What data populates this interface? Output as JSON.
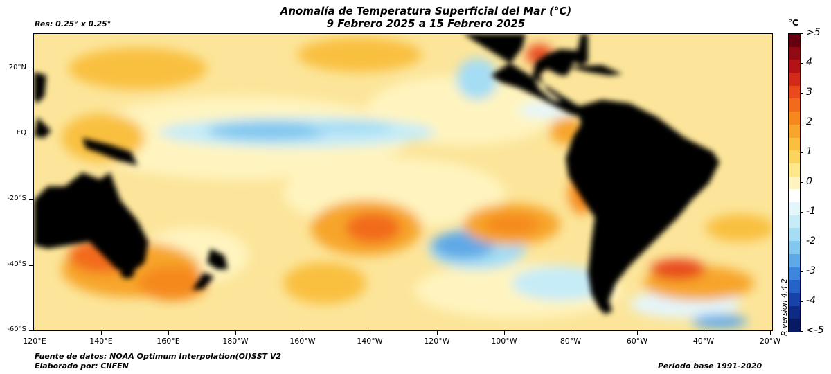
{
  "title": {
    "line1": "Anomalía de Temperatura Superficial del Mar (°C)",
    "line2": "9 Febrero 2025 a 15 Febrero 2025"
  },
  "resolution_note": "Res: 0.25° x 0.25°",
  "footer": {
    "source": "Fuente de datos: NOAA Optimum Interpolation(OI)SST V2",
    "made_by": "Elaborado por: CIIFEN",
    "base_period": "Periodo base 1991-2020"
  },
  "r_version": "R version 4.4.2",
  "map": {
    "lat_labels": [
      "20°N",
      "EQ",
      "-20°S",
      "-40°S",
      "-60°S"
    ],
    "lon_labels": [
      "120°E",
      "140°E",
      "160°E",
      "180°W",
      "160°W",
      "140°W",
      "120°W",
      "100°W",
      "80°W",
      "60°W",
      "40°W",
      "20°W"
    ],
    "land_color": "#000000",
    "background_color": "#fce59a"
  },
  "colorbar": {
    "unit": "°C",
    "labels": [
      ">5",
      "4",
      "3",
      "2",
      "1",
      "0",
      "-1",
      "-2",
      "-3",
      "-4",
      "<-5"
    ],
    "colors": [
      "#67000d",
      "#8f0a12",
      "#b51218",
      "#d42a1a",
      "#e84a1c",
      "#f26a1e",
      "#f5891f",
      "#f7a52c",
      "#f9c040",
      "#fbd460",
      "#fde88a",
      "#fff4bf",
      "#ffffff",
      "#e4f6fb",
      "#c6ecf8",
      "#a4ddf4",
      "#82c7ef",
      "#5fa9e6",
      "#3e86db",
      "#2563c8",
      "#1742a8",
      "#0d2b86",
      "#071a63"
    ]
  }
}
